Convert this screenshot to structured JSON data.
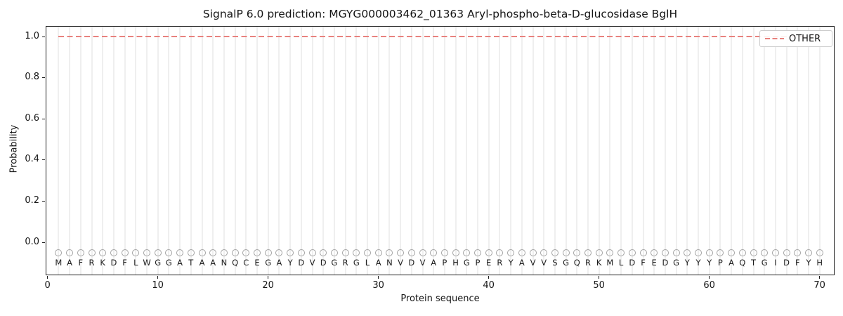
{
  "chart_data": {
    "type": "line",
    "title": "SignalP 6.0 prediction: MGYG000003462_01363 Aryl-phospho-beta-D-glucosidase BglH",
    "xlabel": "Protein sequence",
    "ylabel": "Probability",
    "x_ticks": [
      0,
      10,
      20,
      30,
      40,
      50,
      60,
      70
    ],
    "y_ticks": [
      "0.0",
      "0.2",
      "0.4",
      "0.6",
      "0.8",
      "1.0"
    ],
    "xlim": [
      -0.2,
      71.4
    ],
    "ylim": [
      -0.16,
      1.05
    ],
    "grid": "light vertical gridline at each residue position, no horizontal gridlines",
    "legend": {
      "position": "upper-right",
      "entries": [
        {
          "label": "OTHER",
          "color": "#e8827e",
          "linestyle": "dashed"
        }
      ]
    },
    "sequence": "MAFRKDFLWGGATAANQCEGAYDVDGRGLANVDVAPHGPERYAVVSGQRKMLDFEDGYYYPAQTGIDFYH",
    "series": [
      {
        "name": "OTHER",
        "x_start": 1,
        "x_end": 70,
        "y_constant": 1.0,
        "color": "#e8827e",
        "linestyle": "dashed"
      }
    ],
    "residue_markers": {
      "shape": "open-circle",
      "y": -0.05,
      "edge_color": "#a3a3a3"
    }
  },
  "colors": {
    "background": "#ffffff",
    "spine": "#1f1f1f",
    "gridline": "#efefef",
    "text": "#151515",
    "other_line": "#e8827e",
    "marker_edge": "#a3a3a3",
    "legend_border": "#cccccc"
  }
}
